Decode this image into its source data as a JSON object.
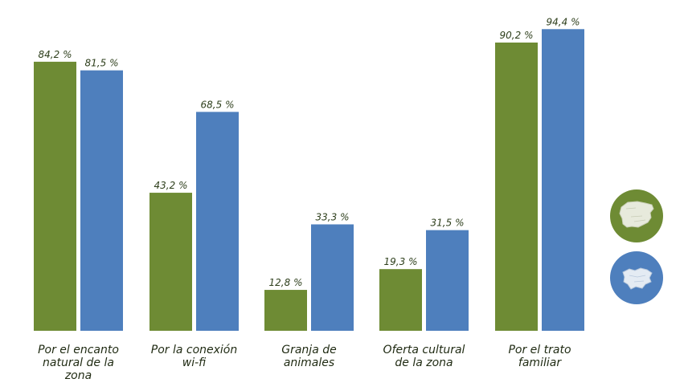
{
  "chart_data": {
    "type": "bar",
    "categories": [
      [
        "Por el encanto",
        "natural de la",
        "zona"
      ],
      [
        "Por la conexión",
        "wi-fi"
      ],
      [
        "Granja de",
        "animales"
      ],
      [
        "Oferta cultural",
        "de la zona"
      ],
      [
        "Por el trato",
        "familiar"
      ]
    ],
    "series": [
      {
        "color": "#6e8b34",
        "values": [
          84.2,
          43.2,
          12.8,
          19.3,
          90.2
        ],
        "labels": [
          "84,2 %",
          "43,2 %",
          "12,8 %",
          "19,3 %",
          "90,2 %"
        ]
      },
      {
        "color": "#4e7fbd",
        "values": [
          81.5,
          68.5,
          33.3,
          31.5,
          94.4
        ],
        "labels": [
          "81,5 %",
          "68,5 %",
          "33,3 %",
          "31,5 %",
          "94,4 %"
        ]
      }
    ],
    "ylim": [
      0,
      100
    ],
    "grid": false,
    "legend_position": "right",
    "legend_icons": [
      "spain-map-icon",
      "basque-country-map-icon"
    ]
  }
}
